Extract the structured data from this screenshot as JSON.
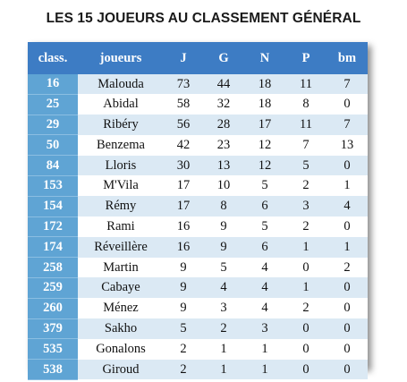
{
  "title": "LES 15 JOUEURS AU CLASSEMENT GÉNÉRAL",
  "columns": [
    "class.",
    "joueurs",
    "J",
    "G",
    "N",
    "P",
    "bm"
  ],
  "rows": [
    [
      "16",
      "Malouda",
      "73",
      "44",
      "18",
      "11",
      "7"
    ],
    [
      "25",
      "Abidal",
      "58",
      "32",
      "18",
      "8",
      "0"
    ],
    [
      "29",
      "Ribéry",
      "56",
      "28",
      "17",
      "11",
      "7"
    ],
    [
      "50",
      "Benzema",
      "42",
      "23",
      "12",
      "7",
      "13"
    ],
    [
      "84",
      "Lloris",
      "30",
      "13",
      "12",
      "5",
      "0"
    ],
    [
      "153",
      "M'Vila",
      "17",
      "10",
      "5",
      "2",
      "1"
    ],
    [
      "154",
      "Rémy",
      "17",
      "8",
      "6",
      "3",
      "4"
    ],
    [
      "172",
      "Rami",
      "16",
      "9",
      "5",
      "2",
      "0"
    ],
    [
      "174",
      "Réveillère",
      "16",
      "9",
      "6",
      "1",
      "1"
    ],
    [
      "258",
      "Martin",
      "9",
      "5",
      "4",
      "0",
      "2"
    ],
    [
      "259",
      "Cabaye",
      "9",
      "4",
      "4",
      "1",
      "0"
    ],
    [
      "260",
      "Ménez",
      "9",
      "3",
      "4",
      "2",
      "0"
    ],
    [
      "379",
      "Sakho",
      "5",
      "2",
      "3",
      "0",
      "0"
    ],
    [
      "535",
      "Gonalons",
      "2",
      "1",
      "1",
      "0",
      "0"
    ],
    [
      "538",
      "Giroud",
      "2",
      "1",
      "1",
      "0",
      "0"
    ]
  ]
}
